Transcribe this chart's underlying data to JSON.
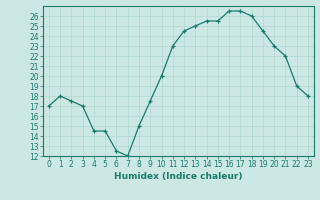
{
  "x": [
    0,
    1,
    2,
    3,
    4,
    5,
    6,
    7,
    8,
    9,
    10,
    11,
    12,
    13,
    14,
    15,
    16,
    17,
    18,
    19,
    20,
    21,
    22,
    23
  ],
  "y": [
    17,
    18,
    17.5,
    17,
    14.5,
    14.5,
    12.5,
    12,
    15,
    17.5,
    20,
    23,
    24.5,
    25,
    25.5,
    25.5,
    26.5,
    26.5,
    26,
    24.5,
    23,
    22,
    19,
    18
  ],
  "title": "",
  "xlabel": "Humidex (Indice chaleur)",
  "ylim": [
    12,
    27
  ],
  "xlim": [
    -0.5,
    23.5
  ],
  "yticks": [
    12,
    13,
    14,
    15,
    16,
    17,
    18,
    19,
    20,
    21,
    22,
    23,
    24,
    25,
    26
  ],
  "xticks": [
    0,
    1,
    2,
    3,
    4,
    5,
    6,
    7,
    8,
    9,
    10,
    11,
    12,
    13,
    14,
    15,
    16,
    17,
    18,
    19,
    20,
    21,
    22,
    23
  ],
  "line_color": "#1a7a6e",
  "bg_color": "#cce8e4",
  "grid_color": "#b0d8d0",
  "marker": "+",
  "tick_fontsize": 5.5,
  "xlabel_fontsize": 6.5
}
